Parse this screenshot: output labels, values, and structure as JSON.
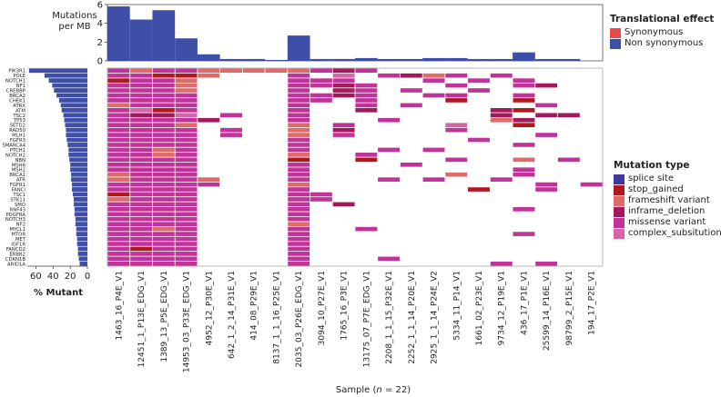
{
  "colors": {
    "synonymous": "#e8474c",
    "non_synonymous": "#3f4fa8",
    "splice_site": "#40389a",
    "stop_gained": "#b0181f",
    "frameshift_variant": "#de6a6a",
    "inframe_deletion": "#a3195b",
    "missense_variant": "#c0349a",
    "complex_subsitution": "#d565a8",
    "mutant_bar": "#3f4fa8"
  },
  "legend_effect": {
    "title": "Translational effect",
    "items": [
      {
        "label": "Synonymous",
        "color_key": "synonymous"
      },
      {
        "label": "Non synonymous",
        "color_key": "non_synonymous"
      }
    ]
  },
  "legend_type": {
    "title": "Mutation type",
    "items": [
      {
        "label": "splice site",
        "color_key": "splice_site"
      },
      {
        "label": "stop_gained",
        "color_key": "stop_gained"
      },
      {
        "label": "frameshift variant",
        "color_key": "frameshift_variant"
      },
      {
        "label": "inframe_deletion",
        "color_key": "inframe_deletion"
      },
      {
        "label": "missense variant",
        "color_key": "missense_variant"
      },
      {
        "label": "complex_subsitution",
        "color_key": "complex_subsitution"
      }
    ]
  },
  "chart_data": {
    "type": "heatmap",
    "xlabel": "Sample (n = 22)",
    "samples": [
      "1463_16_P4E_V1",
      "12451_1_P13E_EDG_V1",
      "1389_13_P5E_EDG_V1",
      "14953_03_P33E_EDG_V1",
      "4952_12_P30E_V1",
      "642_1_2_14_P31E_V1",
      "414_08_P29E_V1",
      "8137_1_1_16_P25E_V1",
      "2035_03_P26E_EDG_V1",
      "3094_10_P27E_V1",
      "1765_16_P3E_V1",
      "13175_07_P7E_EDG_V1",
      "2208_1_1_15_P32E_V1",
      "2252_1_1_14_P20E_V1",
      "2925_1_1_14_P24E_V2",
      "5334_11_P14_V1",
      "1661_02_P23E_V1",
      "9734_12_P19E_V1",
      "436_17_P1E_V1",
      "25599_14_P16E_V1",
      "98799_2_P15E_V1",
      "194_17_P2E_V1"
    ],
    "genes": [
      "PIK3R1",
      "POLE",
      "NOTCH1",
      "NF1",
      "CREBBP",
      "BRCA2",
      "CHEK1",
      "ATRX",
      "ATM",
      "TSC2",
      "TP53",
      "SETD2",
      "RAD50",
      "MLH1",
      "FGFR3",
      "SMARCA4",
      "PTCH1",
      "NOTCH2",
      "NBN",
      "MSH6",
      "MSH2",
      "BRCA1",
      "ATR",
      "FGFR1",
      "FANCI",
      "TSC1",
      "STK11",
      "SMO",
      "RNF43",
      "PDGFRA",
      "NOTCH3",
      "NF2",
      "MYCL1",
      "MTOR",
      "MET",
      "IGF1R",
      "FANCD2",
      "ERBB2",
      "CDKN1B",
      "ARID1A"
    ],
    "top_bars": {
      "ylabel": "Mutations per MB",
      "ylim": [
        0,
        6
      ],
      "yticks": [
        0,
        2,
        4,
        6
      ],
      "series": [
        {
          "name": "Non synonymous",
          "color_key": "non_synonymous",
          "values": [
            5.8,
            4.4,
            5.4,
            2.4,
            0.7,
            0.2,
            0.2,
            0.1,
            2.7,
            0.2,
            0.2,
            0.3,
            0.2,
            0.2,
            0.3,
            0.3,
            0.2,
            0.2,
            0.9,
            0.2,
            0.2,
            0.0
          ]
        },
        {
          "name": "Synonymous",
          "color_key": "synonymous",
          "values": [
            0,
            0,
            0,
            0,
            0,
            0,
            0,
            0,
            0,
            0,
            0,
            0,
            0,
            0,
            0,
            0,
            0,
            0,
            0,
            0,
            0,
            0
          ]
        }
      ]
    },
    "left_bars": {
      "xlabel": "% Mutant",
      "xlim": [
        70,
        0
      ],
      "xticks": [
        60,
        40,
        20,
        0
      ],
      "values": [
        68,
        50,
        45,
        41,
        39,
        36,
        33,
        31,
        30,
        28,
        27,
        26,
        25,
        25,
        24,
        23,
        22,
        22,
        21,
        20,
        20,
        19,
        19,
        18,
        18,
        17,
        16,
        16,
        15,
        15,
        14,
        14,
        13,
        13,
        12,
        12,
        11,
        11,
        10,
        9
      ]
    },
    "cells": [
      [
        0,
        0,
        4
      ],
      [
        0,
        1,
        2
      ],
      [
        0,
        2,
        4
      ],
      [
        0,
        3,
        4
      ],
      [
        0,
        4,
        2
      ],
      [
        0,
        5,
        2
      ],
      [
        0,
        6,
        2
      ],
      [
        0,
        7,
        2
      ],
      [
        0,
        8,
        2
      ],
      [
        0,
        9,
        4
      ],
      [
        0,
        10,
        3
      ],
      [
        0,
        11,
        4
      ],
      [
        1,
        0,
        4
      ],
      [
        1,
        1,
        4
      ],
      [
        1,
        2,
        1
      ],
      [
        1,
        3,
        1
      ],
      [
        1,
        4,
        2
      ],
      [
        1,
        8,
        4
      ],
      [
        1,
        10,
        5
      ],
      [
        1,
        12,
        4
      ],
      [
        1,
        13,
        3
      ],
      [
        1,
        14,
        2
      ],
      [
        1,
        15,
        4
      ],
      [
        1,
        17,
        4
      ],
      [
        2,
        0,
        1
      ],
      [
        2,
        1,
        4
      ],
      [
        2,
        2,
        4
      ],
      [
        2,
        3,
        2
      ],
      [
        2,
        8,
        4
      ],
      [
        2,
        9,
        4
      ],
      [
        2,
        10,
        4
      ],
      [
        2,
        14,
        4
      ],
      [
        2,
        16,
        4
      ],
      [
        2,
        18,
        4
      ],
      [
        3,
        0,
        4
      ],
      [
        3,
        1,
        4
      ],
      [
        3,
        2,
        4
      ],
      [
        3,
        3,
        2
      ],
      [
        3,
        8,
        4
      ],
      [
        3,
        9,
        4
      ],
      [
        3,
        10,
        3
      ],
      [
        3,
        11,
        4
      ],
      [
        3,
        15,
        4
      ],
      [
        3,
        18,
        4
      ],
      [
        3,
        19,
        3
      ],
      [
        4,
        0,
        4
      ],
      [
        4,
        1,
        4
      ],
      [
        4,
        2,
        4
      ],
      [
        4,
        3,
        2
      ],
      [
        4,
        8,
        4
      ],
      [
        4,
        10,
        3
      ],
      [
        4,
        11,
        4
      ],
      [
        4,
        13,
        4
      ],
      [
        4,
        16,
        4
      ],
      [
        5,
        0,
        4
      ],
      [
        5,
        1,
        4
      ],
      [
        5,
        2,
        4
      ],
      [
        5,
        3,
        4
      ],
      [
        5,
        8,
        4
      ],
      [
        5,
        9,
        4
      ],
      [
        5,
        10,
        3
      ],
      [
        5,
        11,
        4
      ],
      [
        5,
        14,
        4
      ],
      [
        5,
        15,
        4
      ],
      [
        5,
        18,
        4
      ],
      [
        6,
        0,
        4
      ],
      [
        6,
        1,
        4
      ],
      [
        6,
        2,
        4
      ],
      [
        6,
        3,
        4
      ],
      [
        6,
        8,
        4
      ],
      [
        6,
        9,
        4
      ],
      [
        6,
        11,
        4
      ],
      [
        6,
        15,
        1
      ],
      [
        6,
        18,
        1
      ],
      [
        7,
        0,
        2
      ],
      [
        7,
        1,
        4
      ],
      [
        7,
        2,
        4
      ],
      [
        7,
        3,
        4
      ],
      [
        7,
        8,
        4
      ],
      [
        7,
        11,
        4
      ],
      [
        7,
        13,
        4
      ],
      [
        7,
        19,
        4
      ],
      [
        8,
        0,
        4
      ],
      [
        8,
        1,
        5
      ],
      [
        8,
        2,
        1
      ],
      [
        8,
        3,
        4
      ],
      [
        8,
        8,
        4
      ],
      [
        8,
        11,
        3
      ],
      [
        8,
        17,
        3
      ],
      [
        8,
        18,
        1
      ],
      [
        9,
        0,
        4
      ],
      [
        9,
        1,
        3
      ],
      [
        9,
        2,
        3
      ],
      [
        9,
        3,
        5
      ],
      [
        9,
        5,
        4
      ],
      [
        9,
        8,
        4
      ],
      [
        9,
        17,
        3
      ],
      [
        9,
        19,
        3
      ],
      [
        9,
        20,
        3
      ],
      [
        10,
        0,
        4
      ],
      [
        10,
        1,
        4
      ],
      [
        10,
        2,
        4
      ],
      [
        10,
        3,
        4
      ],
      [
        10,
        4,
        3
      ],
      [
        10,
        8,
        4
      ],
      [
        10,
        12,
        4
      ],
      [
        10,
        17,
        2
      ],
      [
        10,
        18,
        3
      ],
      [
        11,
        0,
        4
      ],
      [
        11,
        1,
        4
      ],
      [
        11,
        2,
        4
      ],
      [
        11,
        3,
        2
      ],
      [
        11,
        8,
        2
      ],
      [
        11,
        10,
        4
      ],
      [
        11,
        15,
        5
      ],
      [
        11,
        18,
        1
      ],
      [
        12,
        0,
        4
      ],
      [
        12,
        1,
        4
      ],
      [
        12,
        2,
        4
      ],
      [
        12,
        3,
        4
      ],
      [
        12,
        5,
        4
      ],
      [
        12,
        8,
        2
      ],
      [
        12,
        10,
        3
      ],
      [
        12,
        15,
        4
      ],
      [
        13,
        0,
        4
      ],
      [
        13,
        1,
        4
      ],
      [
        13,
        2,
        4
      ],
      [
        13,
        3,
        4
      ],
      [
        13,
        5,
        4
      ],
      [
        13,
        8,
        2
      ],
      [
        13,
        10,
        4
      ],
      [
        13,
        19,
        4
      ],
      [
        14,
        0,
        4
      ],
      [
        14,
        1,
        4
      ],
      [
        14,
        2,
        4
      ],
      [
        14,
        3,
        4
      ],
      [
        14,
        8,
        4
      ],
      [
        14,
        16,
        4
      ],
      [
        15,
        0,
        4
      ],
      [
        15,
        1,
        4
      ],
      [
        15,
        2,
        4
      ],
      [
        15,
        3,
        4
      ],
      [
        15,
        8,
        4
      ],
      [
        15,
        18,
        4
      ],
      [
        16,
        0,
        4
      ],
      [
        16,
        1,
        4
      ],
      [
        16,
        2,
        2
      ],
      [
        16,
        3,
        4
      ],
      [
        16,
        8,
        4
      ],
      [
        16,
        12,
        4
      ],
      [
        16,
        14,
        4
      ],
      [
        17,
        0,
        4
      ],
      [
        17,
        1,
        4
      ],
      [
        17,
        2,
        2
      ],
      [
        17,
        3,
        4
      ],
      [
        17,
        8,
        2
      ],
      [
        17,
        11,
        4
      ],
      [
        18,
        0,
        4
      ],
      [
        18,
        1,
        4
      ],
      [
        18,
        2,
        4
      ],
      [
        18,
        3,
        4
      ],
      [
        18,
        8,
        1
      ],
      [
        18,
        11,
        1
      ],
      [
        18,
        15,
        4
      ],
      [
        18,
        18,
        2
      ],
      [
        18,
        20,
        4
      ],
      [
        19,
        0,
        4
      ],
      [
        19,
        1,
        4
      ],
      [
        19,
        2,
        4
      ],
      [
        19,
        3,
        4
      ],
      [
        19,
        8,
        4
      ],
      [
        19,
        13,
        4
      ],
      [
        20,
        0,
        4
      ],
      [
        20,
        1,
        4
      ],
      [
        20,
        2,
        4
      ],
      [
        20,
        3,
        4
      ],
      [
        20,
        8,
        4
      ],
      [
        20,
        18,
        4
      ],
      [
        21,
        0,
        2
      ],
      [
        21,
        1,
        4
      ],
      [
        21,
        2,
        4
      ],
      [
        21,
        3,
        4
      ],
      [
        21,
        8,
        4
      ],
      [
        21,
        15,
        2
      ],
      [
        21,
        18,
        4
      ],
      [
        22,
        0,
        2
      ],
      [
        22,
        1,
        4
      ],
      [
        22,
        2,
        4
      ],
      [
        22,
        3,
        4
      ],
      [
        22,
        4,
        2
      ],
      [
        22,
        8,
        4
      ],
      [
        22,
        12,
        4
      ],
      [
        22,
        14,
        4
      ],
      [
        22,
        17,
        4
      ],
      [
        23,
        0,
        4
      ],
      [
        23,
        1,
        4
      ],
      [
        23,
        2,
        4
      ],
      [
        23,
        3,
        4
      ],
      [
        23,
        4,
        4
      ],
      [
        23,
        8,
        2
      ],
      [
        23,
        19,
        4
      ],
      [
        23,
        21,
        4
      ],
      [
        24,
        0,
        4
      ],
      [
        24,
        1,
        4
      ],
      [
        24,
        2,
        4
      ],
      [
        24,
        3,
        4
      ],
      [
        24,
        8,
        4
      ],
      [
        24,
        16,
        1
      ],
      [
        24,
        19,
        4
      ],
      [
        25,
        0,
        1
      ],
      [
        25,
        1,
        4
      ],
      [
        25,
        2,
        4
      ],
      [
        25,
        3,
        4
      ],
      [
        25,
        8,
        4
      ],
      [
        25,
        9,
        4
      ],
      [
        26,
        0,
        2
      ],
      [
        26,
        1,
        4
      ],
      [
        26,
        2,
        4
      ],
      [
        26,
        3,
        4
      ],
      [
        26,
        8,
        4
      ],
      [
        26,
        9,
        4
      ],
      [
        27,
        0,
        4
      ],
      [
        27,
        1,
        4
      ],
      [
        27,
        2,
        4
      ],
      [
        27,
        3,
        4
      ],
      [
        27,
        8,
        4
      ],
      [
        27,
        10,
        3
      ],
      [
        28,
        0,
        4
      ],
      [
        28,
        1,
        4
      ],
      [
        28,
        2,
        4
      ],
      [
        28,
        3,
        4
      ],
      [
        28,
        8,
        4
      ],
      [
        28,
        18,
        4
      ],
      [
        29,
        0,
        4
      ],
      [
        29,
        1,
        4
      ],
      [
        29,
        2,
        4
      ],
      [
        29,
        3,
        4
      ],
      [
        29,
        8,
        4
      ],
      [
        30,
        0,
        4
      ],
      [
        30,
        1,
        4
      ],
      [
        30,
        2,
        4
      ],
      [
        30,
        3,
        4
      ],
      [
        30,
        8,
        4
      ],
      [
        31,
        0,
        4
      ],
      [
        31,
        1,
        4
      ],
      [
        31,
        2,
        4
      ],
      [
        31,
        3,
        4
      ],
      [
        31,
        8,
        2
      ],
      [
        32,
        0,
        4
      ],
      [
        32,
        1,
        4
      ],
      [
        32,
        2,
        2
      ],
      [
        32,
        3,
        4
      ],
      [
        32,
        8,
        4
      ],
      [
        32,
        11,
        4
      ],
      [
        33,
        0,
        4
      ],
      [
        33,
        1,
        4
      ],
      [
        33,
        2,
        4
      ],
      [
        33,
        3,
        4
      ],
      [
        33,
        8,
        4
      ],
      [
        33,
        18,
        4
      ],
      [
        34,
        0,
        4
      ],
      [
        34,
        1,
        4
      ],
      [
        34,
        2,
        4
      ],
      [
        34,
        3,
        4
      ],
      [
        34,
        8,
        4
      ],
      [
        35,
        0,
        4
      ],
      [
        35,
        1,
        4
      ],
      [
        35,
        2,
        4
      ],
      [
        35,
        3,
        4
      ],
      [
        35,
        8,
        4
      ],
      [
        36,
        0,
        4
      ],
      [
        36,
        1,
        1
      ],
      [
        36,
        2,
        4
      ],
      [
        36,
        3,
        4
      ],
      [
        36,
        8,
        4
      ],
      [
        37,
        0,
        4
      ],
      [
        37,
        1,
        4
      ],
      [
        37,
        2,
        4
      ],
      [
        37,
        3,
        4
      ],
      [
        37,
        8,
        4
      ],
      [
        38,
        0,
        4
      ],
      [
        38,
        1,
        4
      ],
      [
        38,
        2,
        4
      ],
      [
        38,
        3,
        4
      ],
      [
        38,
        8,
        4
      ],
      [
        38,
        12,
        4
      ],
      [
        39,
        0,
        4
      ],
      [
        39,
        1,
        4
      ],
      [
        39,
        2,
        4
      ],
      [
        39,
        3,
        4
      ],
      [
        39,
        8,
        4
      ],
      [
        39,
        17,
        4
      ],
      [
        39,
        19,
        4
      ]
    ]
  }
}
